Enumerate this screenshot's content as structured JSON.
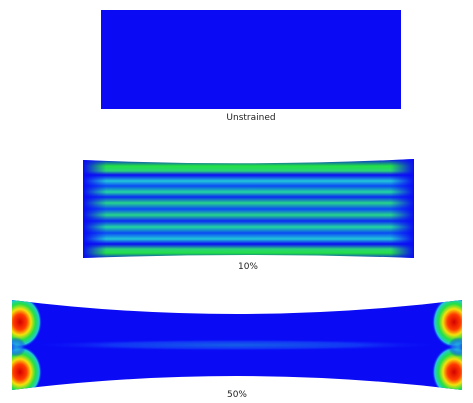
{
  "colors": {
    "background": "#ffffff",
    "low_strain": "#0a0af5",
    "mid_strain": "#22e045",
    "high_strain": "#ff2a00",
    "very_high_strain": "#d40000",
    "transition": "#f5e10a"
  },
  "panels": [
    {
      "caption": "Unstrained",
      "strain_fraction": 0.0
    },
    {
      "caption": "10%",
      "strain_fraction": 0.1
    },
    {
      "caption": "50%",
      "strain_fraction": 0.5
    }
  ]
}
